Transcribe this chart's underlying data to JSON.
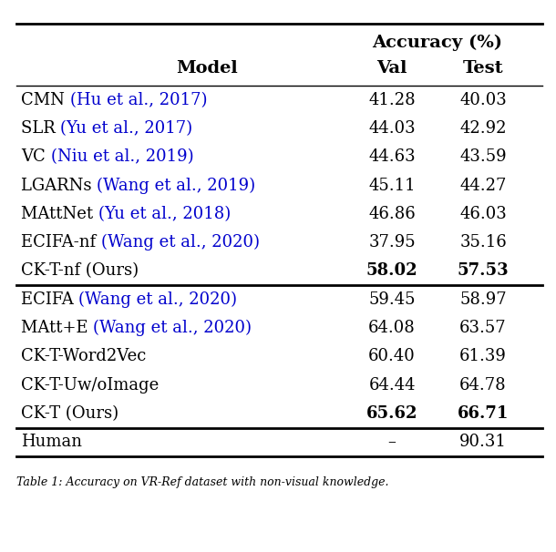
{
  "rows": [
    {
      "model_black": "CMN ",
      "model_blue": "(Hu et al., 2017)",
      "val": "41.28",
      "test": "40.03",
      "bold_val": false,
      "bold_test": false,
      "section_break_before": false
    },
    {
      "model_black": "SLR ",
      "model_blue": "(Yu et al., 2017)",
      "val": "44.03",
      "test": "42.92",
      "bold_val": false,
      "bold_test": false,
      "section_break_before": false
    },
    {
      "model_black": "VC ",
      "model_blue": "(Niu et al., 2019)",
      "val": "44.63",
      "test": "43.59",
      "bold_val": false,
      "bold_test": false,
      "section_break_before": false
    },
    {
      "model_black": "LGARNs ",
      "model_blue": "(Wang et al., 2019)",
      "val": "45.11",
      "test": "44.27",
      "bold_val": false,
      "bold_test": false,
      "section_break_before": false
    },
    {
      "model_black": "MAttNet ",
      "model_blue": "(Yu et al., 2018)",
      "val": "46.86",
      "test": "46.03",
      "bold_val": false,
      "bold_test": false,
      "section_break_before": false
    },
    {
      "model_black": "ECIFA-nf ",
      "model_blue": "(Wang et al., 2020)",
      "val": "37.95",
      "test": "35.16",
      "bold_val": false,
      "bold_test": false,
      "section_break_before": false
    },
    {
      "model_black": "CK-T-nf (Ours)",
      "model_blue": "",
      "val": "58.02",
      "test": "57.53",
      "bold_val": true,
      "bold_test": true,
      "section_break_before": false
    },
    {
      "model_black": "ECIFA ",
      "model_blue": "(Wang et al., 2020)",
      "val": "59.45",
      "test": "58.97",
      "bold_val": false,
      "bold_test": false,
      "section_break_before": true
    },
    {
      "model_black": "MAtt+E ",
      "model_blue": "(Wang et al., 2020)",
      "val": "64.08",
      "test": "63.57",
      "bold_val": false,
      "bold_test": false,
      "section_break_before": false
    },
    {
      "model_black": "CK-T-Word2Vec",
      "model_blue": "",
      "val": "60.40",
      "test": "61.39",
      "bold_val": false,
      "bold_test": false,
      "section_break_before": false
    },
    {
      "model_black": "CK-T-Uw/oImage",
      "model_blue": "",
      "val": "64.44",
      "test": "64.78",
      "bold_val": false,
      "bold_test": false,
      "section_break_before": false
    },
    {
      "model_black": "CK-T (Ours)",
      "model_blue": "",
      "val": "65.62",
      "test": "66.71",
      "bold_val": true,
      "bold_test": true,
      "section_break_before": false
    },
    {
      "model_black": "Human",
      "model_blue": "",
      "val": "–",
      "test": "90.31",
      "bold_val": false,
      "bold_test": false,
      "section_break_before": true
    }
  ],
  "citation_color": "#0000CD",
  "normal_color": "#000000",
  "bg_color": "#ffffff",
  "font_size": 13,
  "header_font_size": 14,
  "caption": "Table 1: Accuracy on VR-Ref dataset with non-visual knowledge."
}
